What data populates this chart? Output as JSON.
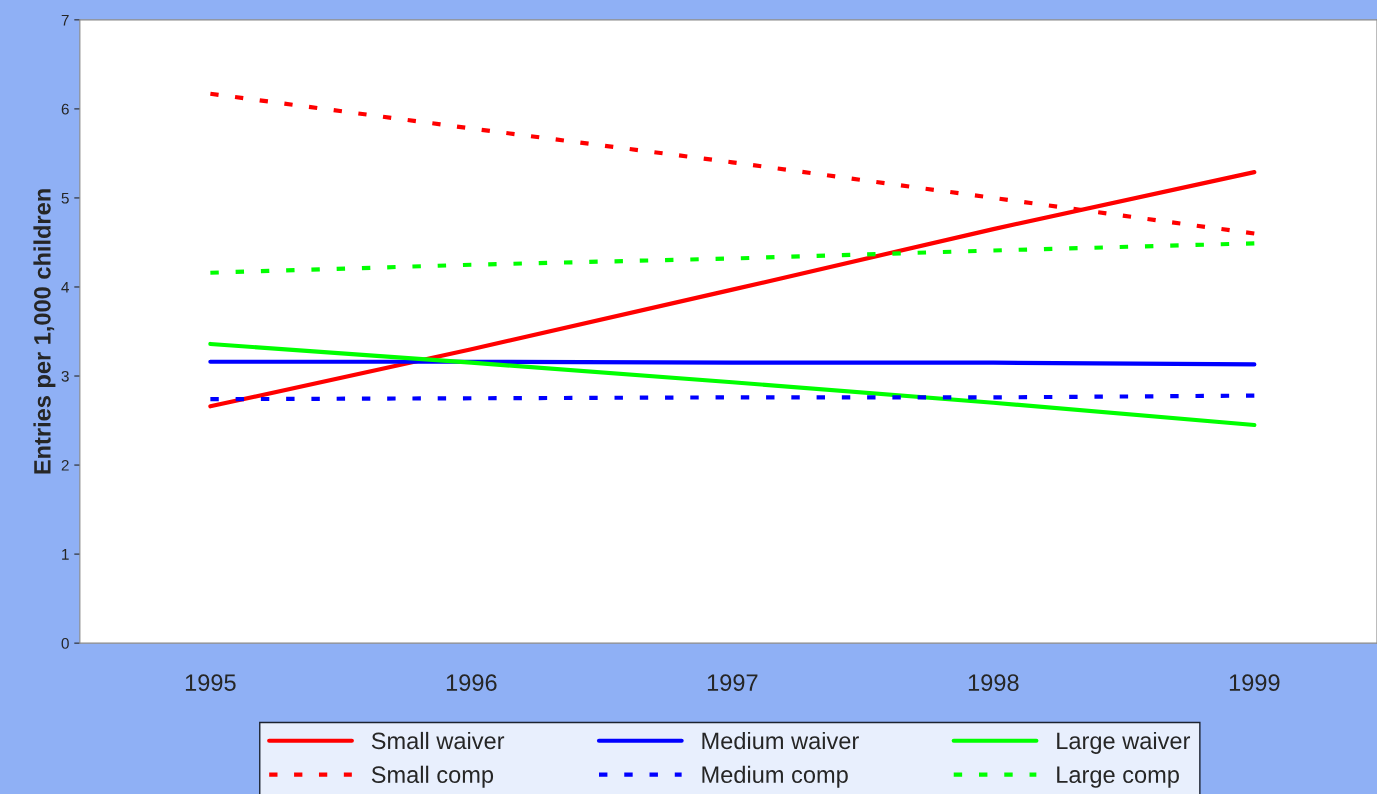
{
  "chart_data": {
    "type": "line",
    "ylabel": "Entries per 1,000 children",
    "categories": [
      "1995",
      "1996",
      "1997",
      "1998",
      "1999"
    ],
    "ylim": [
      0,
      7
    ],
    "yticks": [
      0,
      1,
      2,
      3,
      4,
      5,
      6,
      7
    ],
    "grid": false,
    "legend": "bottom",
    "marker": "none",
    "series": [
      {
        "name": "Small waiver",
        "color": "#ff0000",
        "line_style": "solid",
        "values": [
          2.66,
          3.3,
          3.97,
          4.65,
          5.29
        ]
      },
      {
        "name": "Medium waiver",
        "color": "#0000ff",
        "line_style": "solid",
        "values": [
          3.16,
          3.16,
          3.15,
          3.15,
          3.13
        ]
      },
      {
        "name": "Large waiver",
        "color": "#00ff00",
        "line_style": "solid",
        "values": [
          3.36,
          3.15,
          2.93,
          2.7,
          2.45
        ]
      },
      {
        "name": "Small comp",
        "color": "#ff0000",
        "line_style": "dotted",
        "values": [
          6.17,
          5.78,
          5.4,
          5.0,
          4.6
        ]
      },
      {
        "name": "Medium comp",
        "color": "#0000ff",
        "line_style": "dotted",
        "values": [
          2.74,
          2.75,
          2.76,
          2.76,
          2.78
        ]
      },
      {
        "name": "Large comp",
        "color": "#00ff00",
        "line_style": "dotted",
        "values": [
          4.16,
          4.25,
          4.32,
          4.41,
          4.49
        ]
      }
    ]
  }
}
